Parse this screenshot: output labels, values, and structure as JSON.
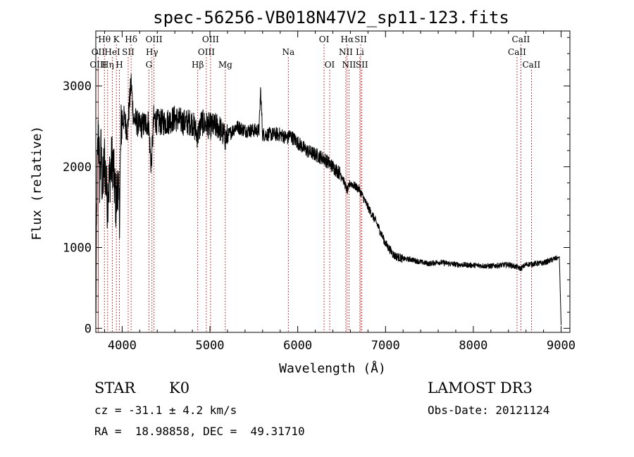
{
  "chart_data": {
    "type": "line",
    "title": "spec-56256-VB018N47V2_sp11-123.fits",
    "xlabel": "Wavelength (Å)",
    "ylabel": "Flux (relative)",
    "xlim": [
      3700,
      9100
    ],
    "ylim": [
      -50,
      3680
    ],
    "xticks": [
      4000,
      5000,
      6000,
      7000,
      8000,
      9000
    ],
    "yticks": [
      0,
      1000,
      2000,
      3000
    ],
    "spectrum_anchors": {
      "wavelength": [
        3700,
        3715,
        3730,
        3745,
        3760,
        3775,
        3800,
        3830,
        3860,
        3890,
        3910,
        3934,
        3950,
        3969,
        3990,
        4020,
        4060,
        4102,
        4130,
        4200,
        4300,
        4330,
        4360,
        4400,
        4500,
        4600,
        4700,
        4800,
        4861,
        4900,
        5000,
        5100,
        5175,
        5300,
        5400,
        5500,
        5560,
        5577,
        5600,
        5700,
        5800,
        5893,
        5900,
        6000,
        6100,
        6200,
        6300,
        6400,
        6500,
        6563,
        6600,
        6700,
        6800,
        6900,
        7000,
        7100,
        7200,
        7300,
        7400,
        7500,
        7600,
        7800,
        8000,
        8200,
        8400,
        8542,
        8600,
        8800,
        8900,
        8980,
        9000
      ],
      "flux": [
        100,
        1900,
        2500,
        1800,
        2200,
        1700,
        2100,
        1600,
        1900,
        2100,
        1800,
        1500,
        1850,
        1400,
        2550,
        2600,
        2450,
        3050,
        2600,
        2500,
        2550,
        2000,
        2600,
        2550,
        2550,
        2600,
        2550,
        2550,
        2380,
        2550,
        2500,
        2500,
        2350,
        2500,
        2450,
        2450,
        2450,
        2950,
        2400,
        2400,
        2400,
        2350,
        2400,
        2300,
        2200,
        2150,
        2100,
        2000,
        1900,
        1700,
        1800,
        1720,
        1500,
        1300,
        1050,
        900,
        860,
        850,
        820,
        800,
        820,
        790,
        780,
        770,
        790,
        740,
        790,
        810,
        850,
        880,
        40
      ]
    },
    "lines": [
      {
        "label": "Hθ",
        "wl": 3798,
        "row": 0
      },
      {
        "label": "OII",
        "wl": 3727,
        "row": 1
      },
      {
        "label": "OIII",
        "wl": 3727,
        "row": 2
      },
      {
        "label": "K",
        "wl": 3934,
        "row": 0
      },
      {
        "label": "HeI",
        "wl": 3889,
        "row": 1
      },
      {
        "label": "Hη",
        "wl": 3835,
        "row": 2
      },
      {
        "label": "SII",
        "wl": 4069,
        "row": 1
      },
      {
        "label": "Hδ",
        "wl": 4102,
        "row": 0
      },
      {
        "label": "H",
        "wl": 3969,
        "row": 2
      },
      {
        "label": "OIII",
        "wl": 4363,
        "row": 0
      },
      {
        "label": "Hγ",
        "wl": 4340,
        "row": 1
      },
      {
        "label": "G",
        "wl": 4305,
        "row": 2
      },
      {
        "label": "Hβ",
        "wl": 4861,
        "row": 2
      },
      {
        "label": "OIII",
        "wl": 5007,
        "row": 0
      },
      {
        "label": "OIII",
        "wl": 4959,
        "row": 1
      },
      {
        "label": "Mg",
        "wl": 5175,
        "row": 2
      },
      {
        "label": "Na",
        "wl": 5893,
        "row": 1
      },
      {
        "label": "OI",
        "wl": 6300,
        "row": 0
      },
      {
        "label": "OI",
        "wl": 6364,
        "row": 2
      },
      {
        "label": "Hα",
        "wl": 6563,
        "row": 0
      },
      {
        "label": "NII",
        "wl": 6548,
        "row": 1
      },
      {
        "label": "NII",
        "wl": 6584,
        "row": 2
      },
      {
        "label": "SII",
        "wl": 6717,
        "row": 0
      },
      {
        "label": "Li",
        "wl": 6708,
        "row": 1
      },
      {
        "label": "SII",
        "wl": 6731,
        "row": 2
      },
      {
        "label": "CaII",
        "wl": 8542,
        "row": 0
      },
      {
        "label": "CaII",
        "wl": 8498,
        "row": 1
      },
      {
        "label": "CaII",
        "wl": 8662,
        "row": 2
      }
    ]
  },
  "info": {
    "object_type": "STAR",
    "subclass": "K0",
    "survey": "LAMOST DR3",
    "cz": "cz = -31.1 ± 4.2 km/s",
    "obs_date": "Obs-Date: 20121124",
    "coords": "RA =  18.98858, DEC =  49.31710"
  }
}
